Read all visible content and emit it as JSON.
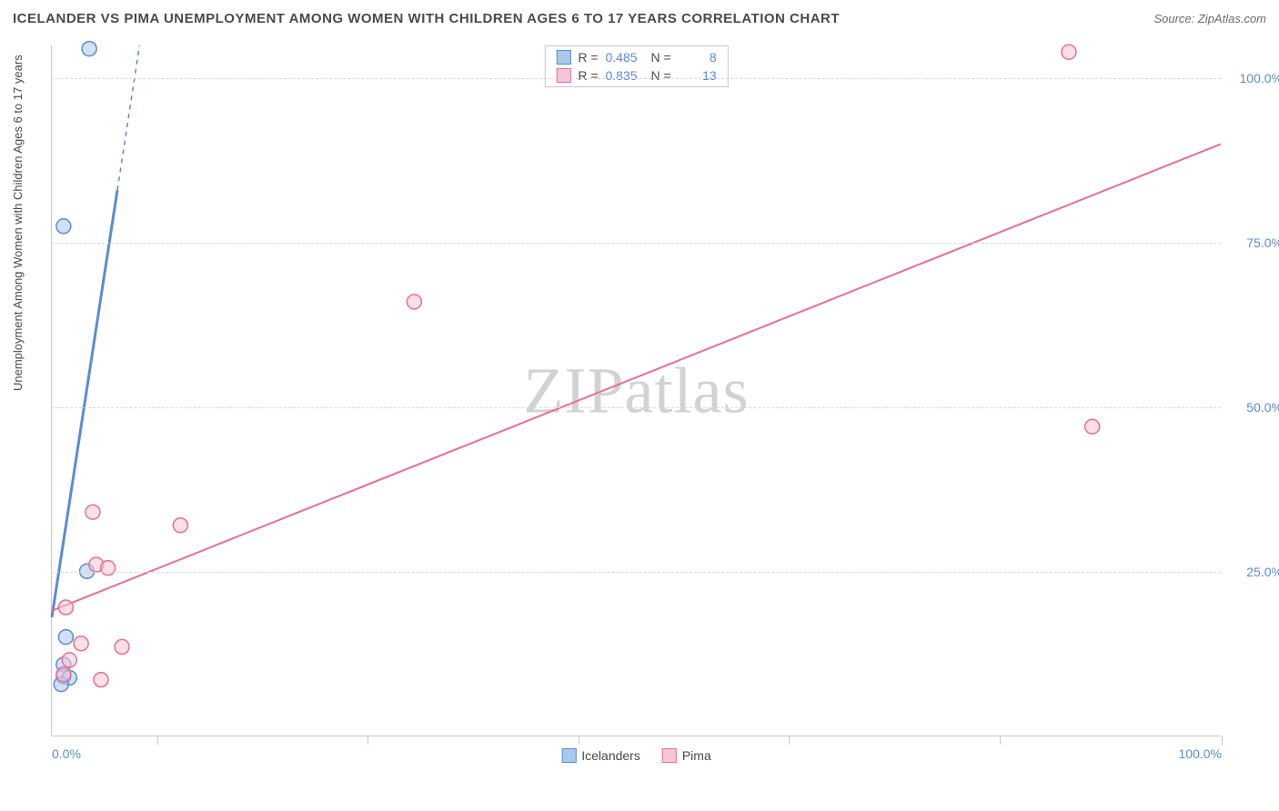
{
  "title": "ICELANDER VS PIMA UNEMPLOYMENT AMONG WOMEN WITH CHILDREN AGES 6 TO 17 YEARS CORRELATION CHART",
  "source_label": "Source: ZipAtlas.com",
  "y_axis_label": "Unemployment Among Women with Children Ages 6 to 17 years",
  "watermark": "ZIPatlas",
  "chart": {
    "type": "scatter",
    "xlim": [
      0,
      100
    ],
    "ylim": [
      0,
      105
    ],
    "x_ticks": [
      0,
      100
    ],
    "x_tick_labels": [
      "0.0%",
      "100.0%"
    ],
    "x_minor_tick_positions": [
      9,
      27,
      45,
      63,
      81,
      100
    ],
    "y_ticks": [
      25,
      50,
      75,
      100
    ],
    "y_tick_labels": [
      "25.0%",
      "50.0%",
      "75.0%",
      "100.0%"
    ],
    "grid_color": "#d8d8d8",
    "background_color": "#ffffff",
    "axis_color": "#c8c8c8",
    "tick_label_color": "#5b8bd4",
    "marker_radius": 8,
    "marker_stroke_width": 1.5,
    "line_width": 2,
    "series": [
      {
        "name": "Icelanders",
        "color_fill": "#a9c8ec",
        "color_stroke": "#5b8bd4",
        "r_value": "0.485",
        "n_value": "8",
        "points": [
          {
            "x": 3.2,
            "y": 104.5
          },
          {
            "x": 1.0,
            "y": 77.5
          },
          {
            "x": 3.0,
            "y": 25.0
          },
          {
            "x": 1.2,
            "y": 15.0
          },
          {
            "x": 1.0,
            "y": 10.8
          },
          {
            "x": 1.0,
            "y": 9.0
          },
          {
            "x": 1.5,
            "y": 8.8
          },
          {
            "x": 0.8,
            "y": 7.8
          }
        ],
        "trend_line": {
          "x1": 0,
          "y1": 18,
          "x2": 7.5,
          "y2": 105,
          "solid_until_y": 83
        }
      },
      {
        "name": "Pima",
        "color_fill": "#f6c6d4",
        "color_stroke": "#e86e94",
        "r_value": "0.835",
        "n_value": "13",
        "points": [
          {
            "x": 87.0,
            "y": 104.0
          },
          {
            "x": 31.0,
            "y": 66.0
          },
          {
            "x": 89.0,
            "y": 47.0
          },
          {
            "x": 3.5,
            "y": 34.0
          },
          {
            "x": 11.0,
            "y": 32.0
          },
          {
            "x": 3.8,
            "y": 26.0
          },
          {
            "x": 4.8,
            "y": 25.5
          },
          {
            "x": 1.2,
            "y": 19.5
          },
          {
            "x": 2.5,
            "y": 14.0
          },
          {
            "x": 6.0,
            "y": 13.5
          },
          {
            "x": 1.5,
            "y": 11.5
          },
          {
            "x": 1.0,
            "y": 9.3
          },
          {
            "x": 4.2,
            "y": 8.5
          }
        ],
        "trend_line": {
          "x1": 0,
          "y1": 19,
          "x2": 100,
          "y2": 90
        }
      }
    ]
  },
  "stats_box": {
    "rows": [
      {
        "swatch_fill": "#a9c8ec",
        "swatch_stroke": "#5b8bd4",
        "r_label": "R = ",
        "r_val": "0.485",
        "n_label": "N = ",
        "n_val": "8"
      },
      {
        "swatch_fill": "#f6c6d4",
        "swatch_stroke": "#e86e94",
        "r_label": "R = ",
        "r_val": "0.835",
        "n_label": "N = ",
        "n_val": "13"
      }
    ]
  },
  "legend": {
    "items": [
      {
        "label": "Icelanders",
        "swatch_fill": "#a9c8ec",
        "swatch_stroke": "#5b8bd4"
      },
      {
        "label": "Pima",
        "swatch_fill": "#f6c6d4",
        "swatch_stroke": "#e86e94"
      }
    ]
  }
}
